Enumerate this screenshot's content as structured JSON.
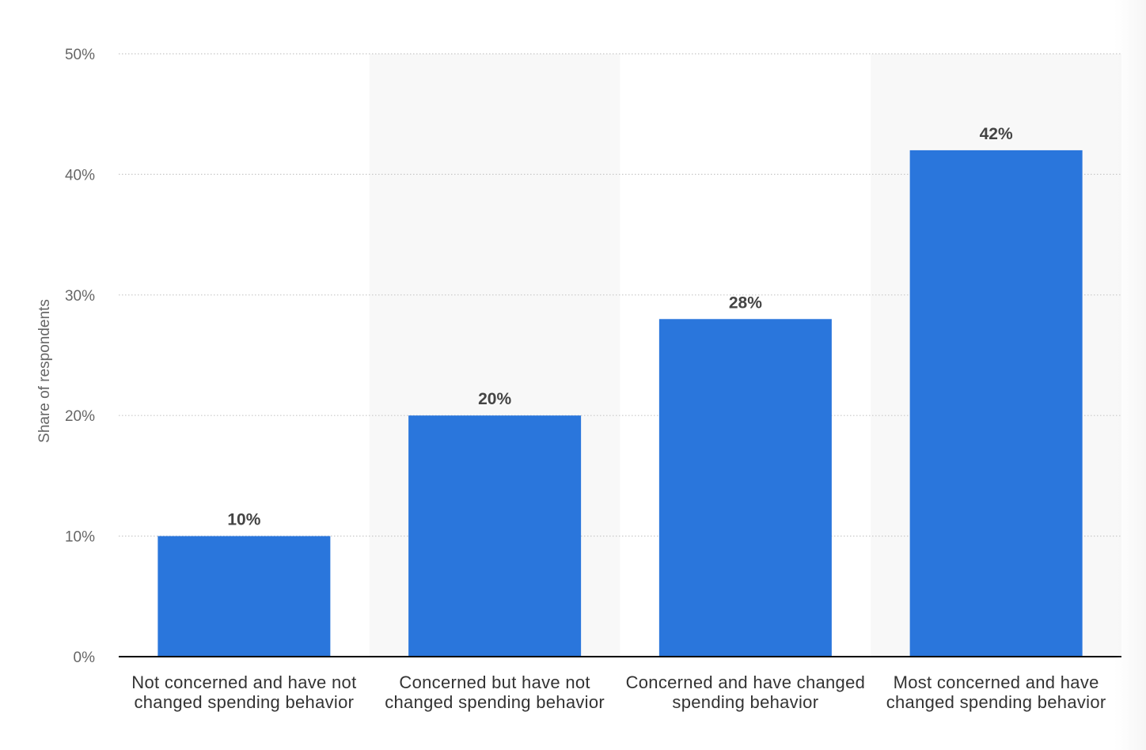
{
  "chart_data": {
    "type": "bar",
    "categories": [
      [
        "Not concerned and have not",
        "changed spending behavior"
      ],
      [
        "Concerned but have not",
        "changed spending behavior"
      ],
      [
        "Concerned and have changed",
        "spending behavior"
      ],
      [
        "Most concerned and have",
        "changed spending behavior"
      ]
    ],
    "values": [
      10,
      20,
      28,
      42
    ],
    "value_labels": [
      "10%",
      "20%",
      "28%",
      "42%"
    ],
    "ylabel": "Share of respondents",
    "ylim": [
      0,
      50
    ],
    "yticks": [
      0,
      10,
      20,
      30,
      40,
      50
    ],
    "ytick_labels": [
      "0%",
      "10%",
      "20%",
      "30%",
      "40%",
      "50%"
    ],
    "grid": "dotted horizontal",
    "alternating_column_shading": true,
    "colors": {
      "bar": "#2a76dc",
      "grid": "#c8c8c8",
      "baseline": "#000000",
      "shade": "#f8f8f8"
    }
  }
}
